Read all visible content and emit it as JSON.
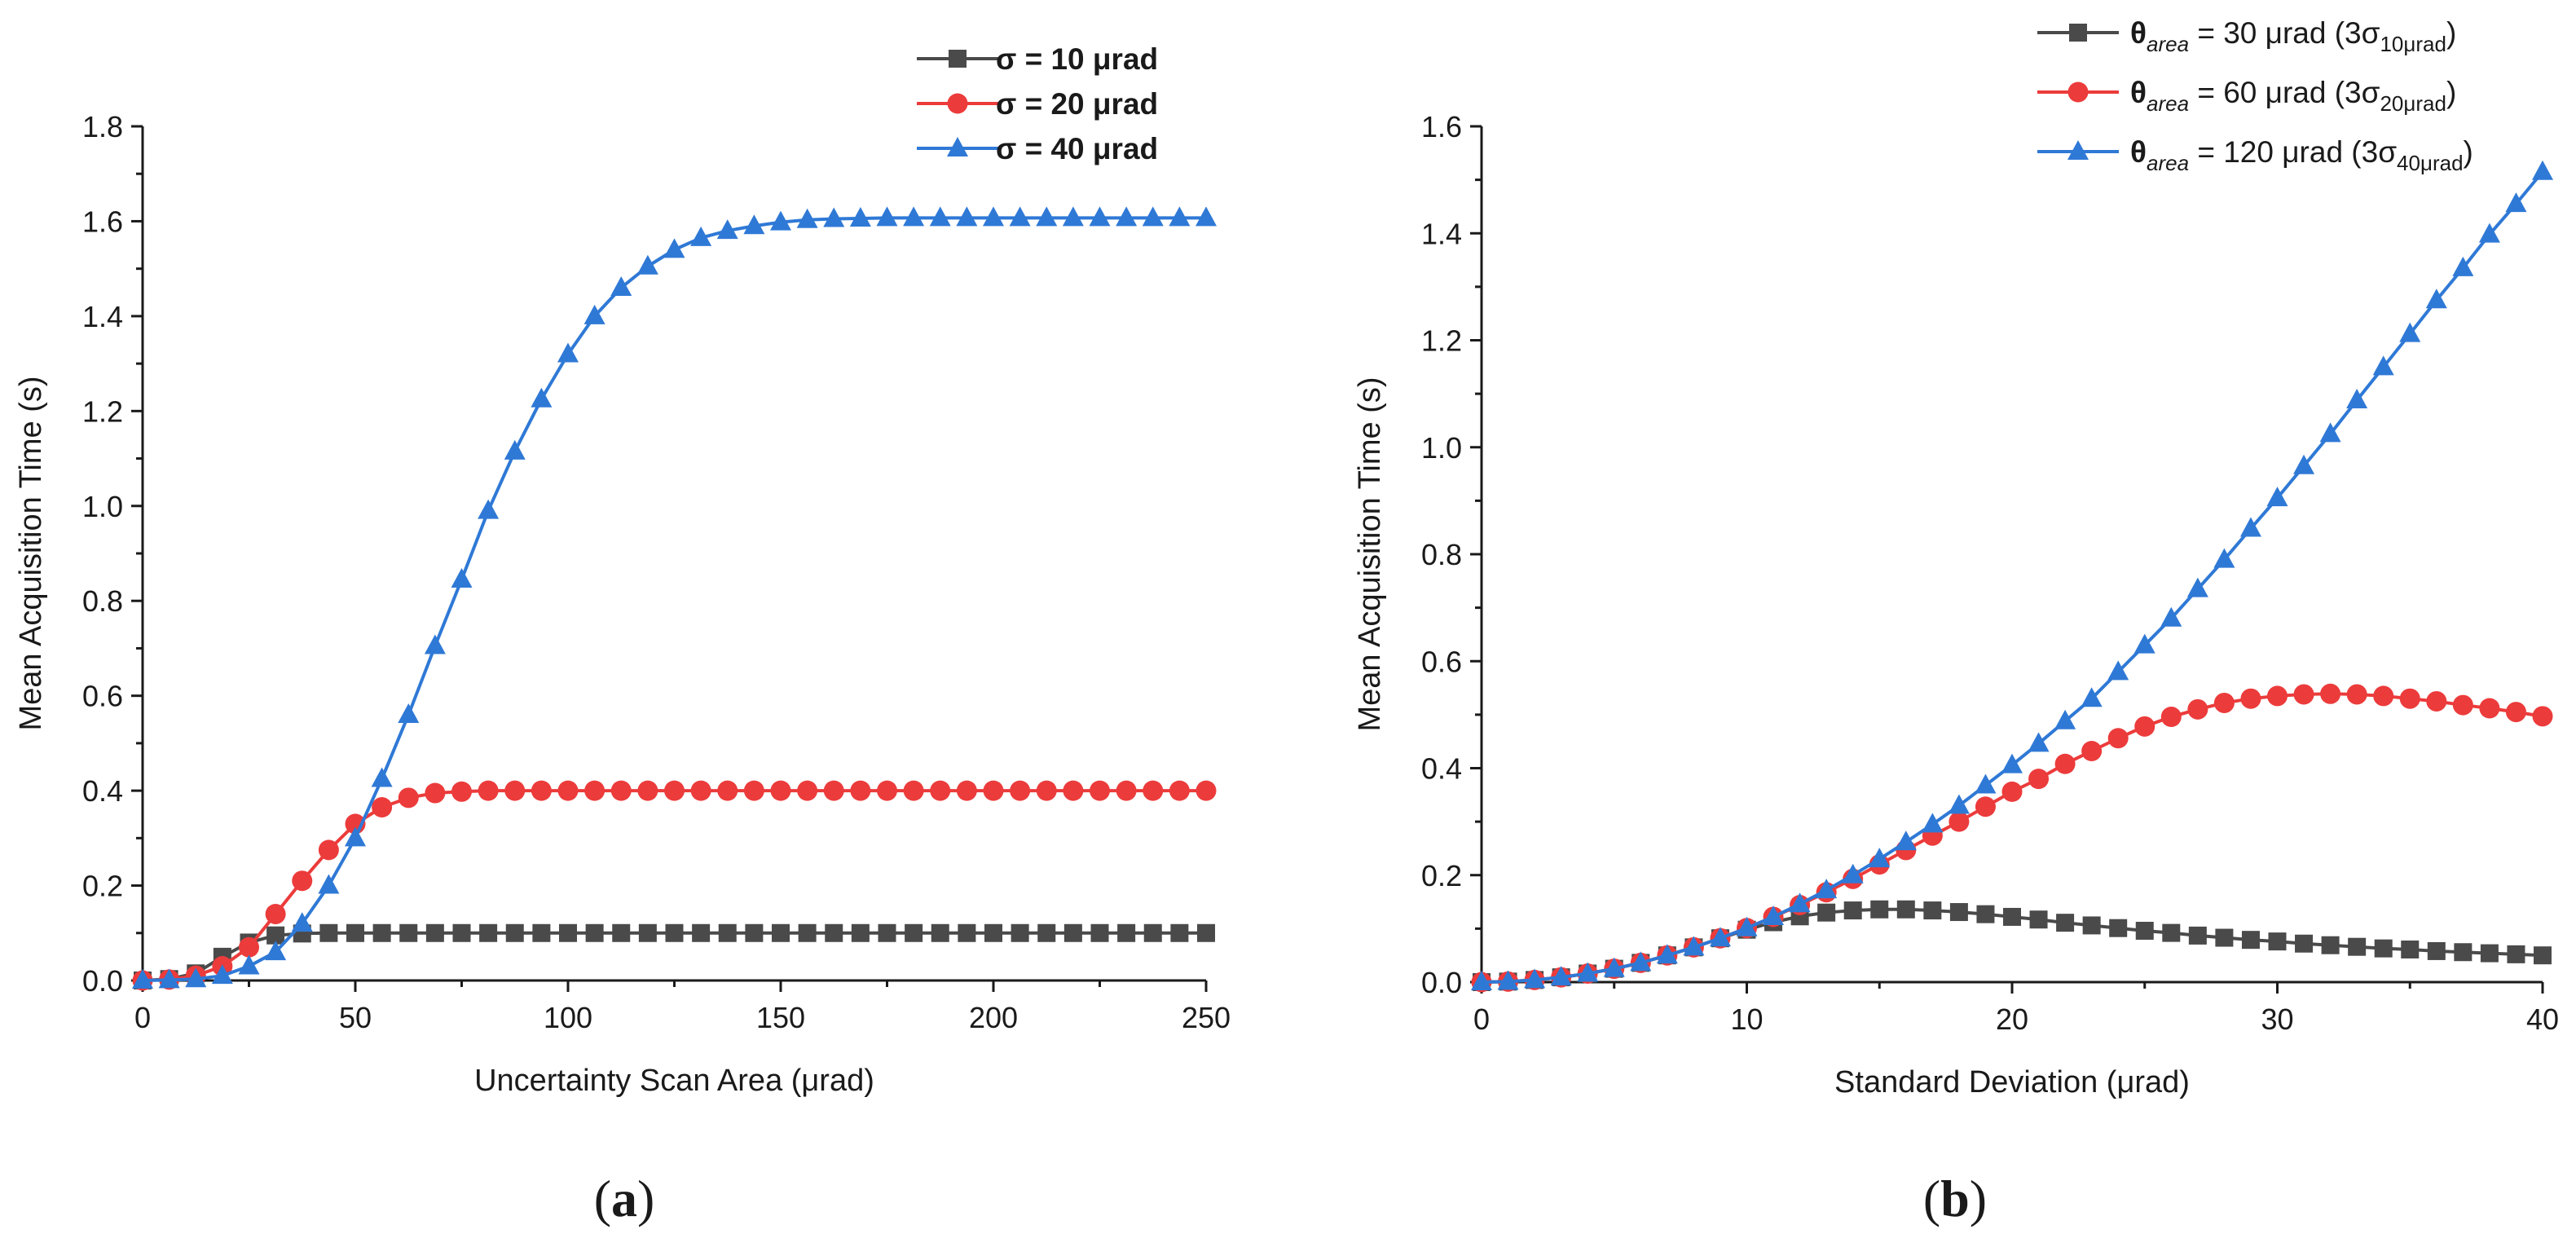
{
  "colors": {
    "black": "#4a4a4a",
    "red": "#ec3b3b",
    "blue": "#2f79d6",
    "axis": "#1a1a1a"
  },
  "panels": [
    {
      "label_open": "(",
      "label_letter": "a",
      "label_close": ")"
    },
    {
      "label_open": "(",
      "label_letter": "b",
      "label_close": ")"
    }
  ],
  "chart_data": [
    {
      "type": "line",
      "panel": "a",
      "xlabel": "Uncertainty Scan Area (μrad)",
      "ylabel": "Mean Acquisition Time (s)",
      "xlim": [
        0,
        250
      ],
      "ylim": [
        0,
        1.8
      ],
      "xticks": [
        0,
        50,
        100,
        150,
        200,
        250
      ],
      "yticks": [
        0.0,
        0.2,
        0.4,
        0.6,
        0.8,
        1.0,
        1.2,
        1.4,
        1.6,
        1.8
      ],
      "xtick_labels": [
        "0",
        "50",
        "100",
        "150",
        "200",
        "250"
      ],
      "ytick_labels": [
        "0.0",
        "0.2",
        "0.4",
        "0.6",
        "0.8",
        "1.0",
        "1.2",
        "1.4",
        "1.6",
        "1.8"
      ],
      "legend_position": "top-right",
      "series": [
        {
          "name": "σ = 10 μrad",
          "color": "black",
          "marker": "square",
          "x": [
            0,
            6.25,
            12.5,
            18.75,
            25,
            31.25,
            37.5,
            43.75,
            50,
            56.25,
            62.5,
            68.75,
            75,
            81.25,
            87.5,
            93.75,
            100,
            106.25,
            112.5,
            118.75,
            125,
            131.25,
            137.5,
            143.75,
            150,
            156.25,
            162.5,
            168.75,
            175,
            181.25,
            187.5,
            193.75,
            200,
            206.25,
            212.5,
            218.75,
            225,
            231.25,
            237.5,
            243.75,
            250
          ],
          "y": [
            0,
            0.003,
            0.015,
            0.05,
            0.08,
            0.095,
            0.099,
            0.1,
            0.1,
            0.1,
            0.1,
            0.1,
            0.1,
            0.1,
            0.1,
            0.1,
            0.1,
            0.1,
            0.1,
            0.1,
            0.1,
            0.1,
            0.1,
            0.1,
            0.1,
            0.1,
            0.1,
            0.1,
            0.1,
            0.1,
            0.1,
            0.1,
            0.1,
            0.1,
            0.1,
            0.1,
            0.1,
            0.1,
            0.1,
            0.1,
            0.1
          ]
        },
        {
          "name": "σ = 20 μrad",
          "color": "red",
          "marker": "circle",
          "x": [
            0,
            6.25,
            12.5,
            18.75,
            25,
            31.25,
            37.5,
            43.75,
            50,
            56.25,
            62.5,
            68.75,
            75,
            81.25,
            87.5,
            93.75,
            100,
            106.25,
            112.5,
            118.75,
            125,
            131.25,
            137.5,
            143.75,
            150,
            156.25,
            162.5,
            168.75,
            175,
            181.25,
            187.5,
            193.75,
            200,
            206.25,
            212.5,
            218.75,
            225,
            231.25,
            237.5,
            243.75,
            250
          ],
          "y": [
            0,
            0.002,
            0.01,
            0.03,
            0.07,
            0.14,
            0.21,
            0.275,
            0.33,
            0.365,
            0.385,
            0.395,
            0.398,
            0.4,
            0.4,
            0.4,
            0.4,
            0.4,
            0.4,
            0.4,
            0.4,
            0.4,
            0.4,
            0.4,
            0.4,
            0.4,
            0.4,
            0.4,
            0.4,
            0.4,
            0.4,
            0.4,
            0.4,
            0.4,
            0.4,
            0.4,
            0.4,
            0.4,
            0.4,
            0.4,
            0.4
          ]
        },
        {
          "name": "σ = 40 μrad",
          "color": "blue",
          "marker": "triangle",
          "x": [
            0,
            6.25,
            12.5,
            18.75,
            25,
            31.25,
            37.5,
            43.75,
            50,
            56.25,
            62.5,
            68.75,
            75,
            81.25,
            87.5,
            93.75,
            100,
            106.25,
            112.5,
            118.75,
            125,
            131.25,
            137.5,
            143.75,
            150,
            156.25,
            162.5,
            168.75,
            175,
            181.25,
            187.5,
            193.75,
            200,
            206.25,
            212.5,
            218.75,
            225,
            231.25,
            237.5,
            243.75,
            250
          ],
          "y": [
            0,
            0.001,
            0.003,
            0.01,
            0.03,
            0.06,
            0.12,
            0.2,
            0.3,
            0.425,
            0.56,
            0.705,
            0.845,
            0.99,
            1.115,
            1.225,
            1.32,
            1.4,
            1.46,
            1.505,
            1.54,
            1.565,
            1.58,
            1.59,
            1.598,
            1.603,
            1.605,
            1.606,
            1.607,
            1.607,
            1.607,
            1.607,
            1.607,
            1.607,
            1.607,
            1.607,
            1.607,
            1.607,
            1.607,
            1.607,
            1.607
          ]
        }
      ]
    },
    {
      "type": "line",
      "panel": "b",
      "xlabel": "Standard Deviation (μrad)",
      "ylabel": "Mean Acquisition Time (s)",
      "xlim": [
        0,
        40
      ],
      "ylim": [
        0,
        1.6
      ],
      "xticks": [
        0,
        10,
        20,
        30,
        40
      ],
      "yticks": [
        0.0,
        0.2,
        0.4,
        0.6,
        0.8,
        1.0,
        1.2,
        1.4,
        1.6
      ],
      "xtick_labels": [
        "0",
        "10",
        "20",
        "30",
        "40"
      ],
      "ytick_labels": [
        "0.0",
        "0.2",
        "0.4",
        "0.6",
        "0.8",
        "1.0",
        "1.2",
        "1.4",
        "1.6"
      ],
      "legend_position": "top-right",
      "series": [
        {
          "name": "θarea = 30 μrad (3σ10μrad)",
          "legend": {
            "symbol": "θ",
            "sub": "area",
            "text": " = 30 μrad (3σ",
            "sub2": "10μrad",
            "close": ")"
          },
          "color": "black",
          "marker": "square",
          "x": [
            0,
            1,
            2,
            3,
            4,
            5,
            6,
            7,
            8,
            9,
            10,
            11,
            12,
            13,
            14,
            15,
            16,
            17,
            18,
            19,
            20,
            21,
            22,
            23,
            24,
            25,
            26,
            27,
            28,
            29,
            30,
            31,
            32,
            33,
            34,
            35,
            36,
            37,
            38,
            39,
            40
          ],
          "y": [
            0,
            0.001,
            0.004,
            0.009,
            0.016,
            0.025,
            0.036,
            0.05,
            0.065,
            0.082,
            0.098,
            0.112,
            0.123,
            0.13,
            0.134,
            0.136,
            0.136,
            0.134,
            0.131,
            0.127,
            0.122,
            0.117,
            0.111,
            0.106,
            0.101,
            0.096,
            0.092,
            0.087,
            0.083,
            0.079,
            0.076,
            0.072,
            0.069,
            0.066,
            0.063,
            0.061,
            0.058,
            0.056,
            0.054,
            0.052,
            0.05
          ]
        },
        {
          "name": "θarea = 60 μrad (3σ20μrad)",
          "legend": {
            "symbol": "θ",
            "sub": "area",
            "text": " = 60 μrad (3σ",
            "sub2": "20μrad",
            "close": ")"
          },
          "color": "red",
          "marker": "circle",
          "x": [
            0,
            1,
            2,
            3,
            4,
            5,
            6,
            7,
            8,
            9,
            10,
            11,
            12,
            13,
            14,
            15,
            16,
            17,
            18,
            19,
            20,
            21,
            22,
            23,
            24,
            25,
            26,
            27,
            28,
            29,
            30,
            31,
            32,
            33,
            34,
            35,
            36,
            37,
            38,
            39,
            40
          ],
          "y": [
            0,
            0.001,
            0.004,
            0.009,
            0.016,
            0.025,
            0.036,
            0.05,
            0.065,
            0.082,
            0.101,
            0.122,
            0.144,
            0.168,
            0.193,
            0.22,
            0.247,
            0.274,
            0.3,
            0.328,
            0.356,
            0.38,
            0.408,
            0.432,
            0.456,
            0.478,
            0.496,
            0.51,
            0.522,
            0.53,
            0.535,
            0.538,
            0.539,
            0.538,
            0.535,
            0.53,
            0.525,
            0.518,
            0.512,
            0.505,
            0.497
          ]
        },
        {
          "name": "θarea = 120 μrad (3σ40μrad)",
          "legend": {
            "symbol": "θ",
            "sub": "area",
            "text": " = 120 μrad (3σ",
            "sub2": "40μrad",
            "close": ")"
          },
          "color": "blue",
          "marker": "triangle",
          "x": [
            0,
            1,
            2,
            3,
            4,
            5,
            6,
            7,
            8,
            9,
            10,
            11,
            12,
            13,
            14,
            15,
            16,
            17,
            18,
            19,
            20,
            21,
            22,
            23,
            24,
            25,
            26,
            27,
            28,
            29,
            30,
            31,
            32,
            33,
            34,
            35,
            36,
            37,
            38,
            39,
            40
          ],
          "y": [
            0,
            0.001,
            0.004,
            0.009,
            0.016,
            0.025,
            0.036,
            0.05,
            0.065,
            0.082,
            0.101,
            0.122,
            0.146,
            0.172,
            0.2,
            0.23,
            0.262,
            0.295,
            0.33,
            0.368,
            0.406,
            0.446,
            0.488,
            0.53,
            0.58,
            0.63,
            0.68,
            0.735,
            0.79,
            0.848,
            0.905,
            0.965,
            1.025,
            1.088,
            1.15,
            1.212,
            1.275,
            1.335,
            1.398,
            1.455,
            1.515
          ]
        }
      ]
    }
  ]
}
